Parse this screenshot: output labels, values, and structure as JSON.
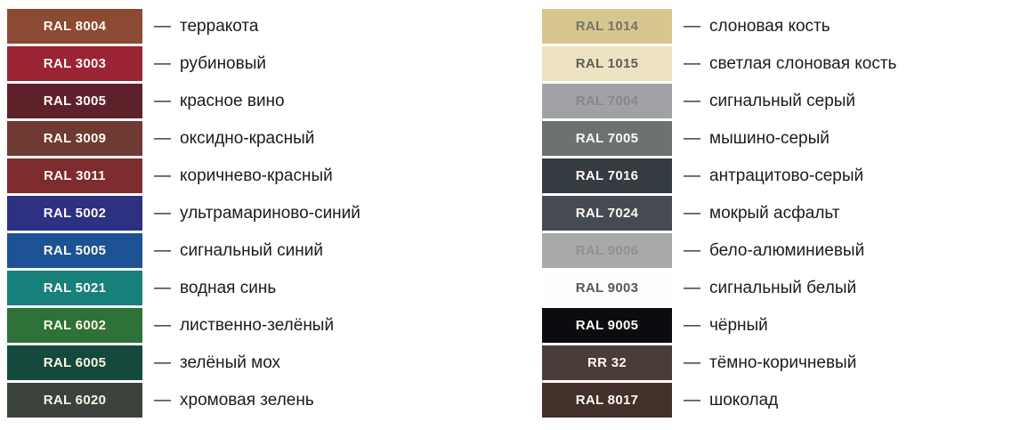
{
  "dash": "—",
  "chart_data": {
    "type": "table",
    "description": "RAL color reference chart, two columns of color swatches with code and Russian color name",
    "columns": [
      {
        "side": "left",
        "items": [
          {
            "code": "RAL 8004",
            "name": "терракота",
            "color": "#8D4A32",
            "code_color": "#FDF7F4"
          },
          {
            "code": "RAL 3003",
            "name": "рубиновый",
            "color": "#9B2433",
            "code_color": "#FDF7F4"
          },
          {
            "code": "RAL 3005",
            "name": "красное вино",
            "color": "#5E2129",
            "code_color": "#FDF7F4"
          },
          {
            "code": "RAL 3009",
            "name": "оксидно-красный",
            "color": "#6F3A31",
            "code_color": "#FDF7F4"
          },
          {
            "code": "RAL 3011",
            "name": "коричнево-красный",
            "color": "#7E2B2E",
            "code_color": "#FDF7F4"
          },
          {
            "code": "RAL 5002",
            "name": "ультрамариново-синий",
            "color": "#2E3081",
            "code_color": "#FDF7F4"
          },
          {
            "code": "RAL 5005",
            "name": "сигнальный синий",
            "color": "#1D5394",
            "code_color": "#FDF7F4"
          },
          {
            "code": "RAL 5021",
            "name": "водная синь",
            "color": "#18807A",
            "code_color": "#FDF7F4"
          },
          {
            "code": "RAL 6002",
            "name": "лиственно-зелёный",
            "color": "#2E7139",
            "code_color": "#FBF4E4"
          },
          {
            "code": "RAL 6005",
            "name": "зелёный мох",
            "color": "#15493D",
            "code_color": "#FBF4E4"
          },
          {
            "code": "RAL 6020",
            "name": "хромовая зелень",
            "color": "#3B433C",
            "code_color": "#FBF4E4"
          }
        ]
      },
      {
        "side": "right",
        "items": [
          {
            "code": "RAL 1014",
            "name": "слоновая кость",
            "color": "#D8C68F",
            "code_color": "#75746A"
          },
          {
            "code": "RAL 1015",
            "name": "светлая слоновая кость",
            "color": "#EDE3C2",
            "code_color": "#615F56"
          },
          {
            "code": "RAL 7004",
            "name": "сигнальный серый",
            "color": "#A0A2A5",
            "code_color": "#85878A"
          },
          {
            "code": "RAL 7005",
            "name": "мышино-серый",
            "color": "#6C7270",
            "code_color": "#FDF7F4"
          },
          {
            "code": "RAL 7016",
            "name": "антрацитово-серый",
            "color": "#343B41",
            "code_color": "#FDF7F4"
          },
          {
            "code": "RAL 7024",
            "name": "мокрый асфальт",
            "color": "#464A52",
            "code_color": "#FDF7F4"
          },
          {
            "code": "RAL 9006",
            "name": "бело-алюминиевый",
            "color": "#A8AAA9",
            "code_color": "#8F9290"
          },
          {
            "code": "RAL 9003",
            "name": "сигнальный белый",
            "color": "#FDFDFD",
            "code_color": "#515A60"
          },
          {
            "code": "RAL 9005",
            "name": "чёрный",
            "color": "#0B0B10",
            "code_color": "#FDF7F4"
          },
          {
            "code": "RR 32",
            "name": "тёмно-коричневый",
            "color": "#4A3C39",
            "code_color": "#FDF7F4"
          },
          {
            "code": "RAL 8017",
            "name": "шоколад",
            "color": "#43302B",
            "code_color": "#FDF7F4"
          }
        ]
      }
    ]
  }
}
